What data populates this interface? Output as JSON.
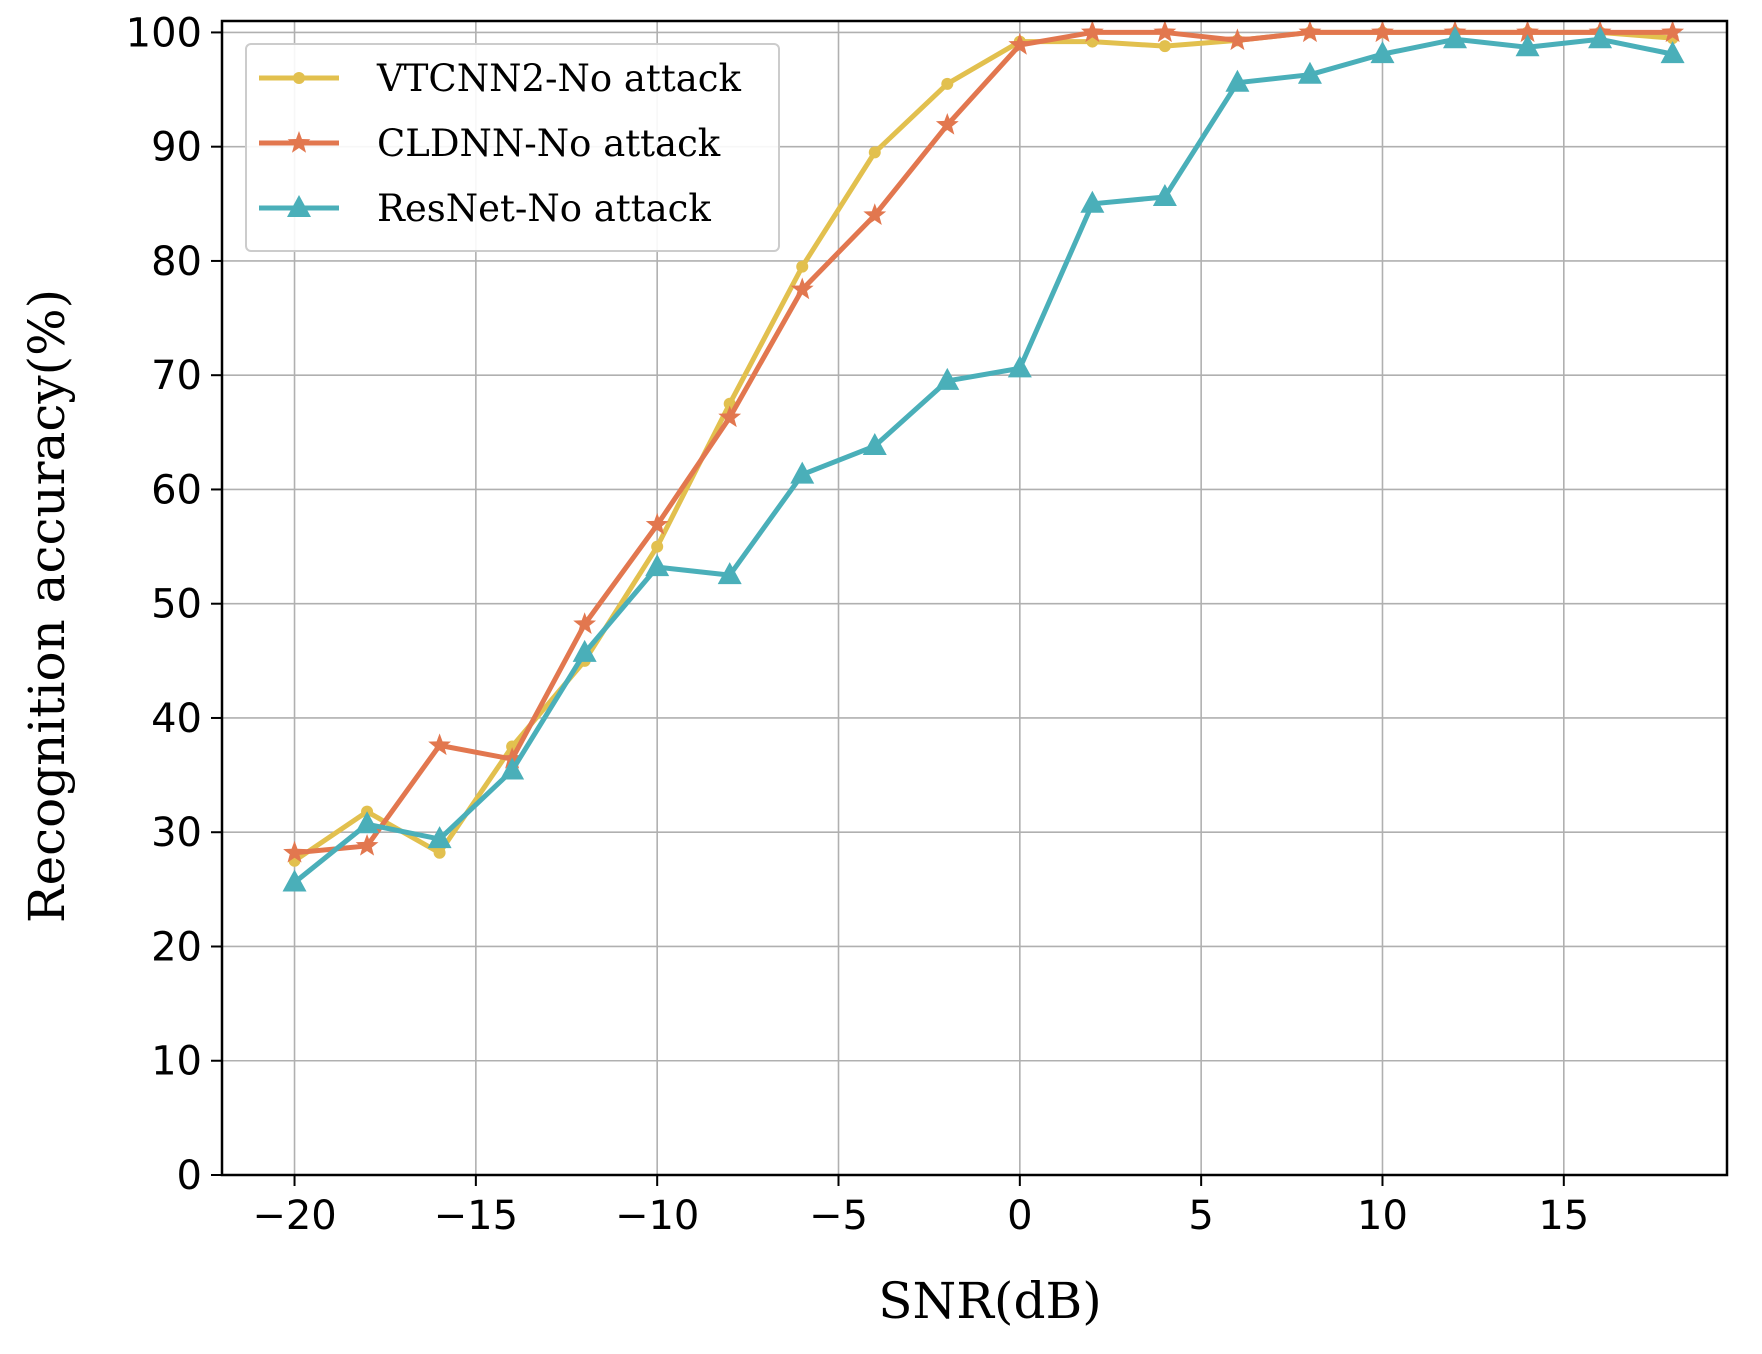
{
  "chart_data": {
    "type": "line",
    "title": "",
    "xlabel": "SNR(dB)",
    "ylabel": "Recognition accuracy(%)",
    "x": [
      -20,
      -18,
      -16,
      -14,
      -12,
      -10,
      -8,
      -6,
      -4,
      -2,
      0,
      2,
      4,
      6,
      8,
      10,
      12,
      14,
      16,
      18
    ],
    "xlim": [
      -22,
      19.5
    ],
    "ylim": [
      0,
      101
    ],
    "xticks": [
      -20,
      -15,
      -10,
      -5,
      0,
      5,
      10,
      15
    ],
    "xtick_labels": [
      "−20",
      "−15",
      "−10",
      "−5",
      "0",
      "5",
      "10",
      "15"
    ],
    "yticks": [
      0,
      10,
      20,
      30,
      40,
      50,
      60,
      70,
      80,
      90,
      100
    ],
    "ytick_labels": [
      "0",
      "10",
      "20",
      "30",
      "40",
      "50",
      "60",
      "70",
      "80",
      "90",
      "100"
    ],
    "grid": true,
    "legend_position": "top-left",
    "series": [
      {
        "name": "VTCNN2-No attack",
        "color": "#E2C04E",
        "marker": "circle",
        "values": [
          27.5,
          31.8,
          28.2,
          37.5,
          45.0,
          55.0,
          67.5,
          79.5,
          89.5,
          95.5,
          99.2,
          99.2,
          98.8,
          99.3,
          100.0,
          100.0,
          100.0,
          100.0,
          100.0,
          99.5
        ]
      },
      {
        "name": "CLDNN-No attack",
        "color": "#E2774F",
        "marker": "star",
        "values": [
          28.2,
          28.8,
          37.6,
          36.4,
          48.2,
          56.9,
          66.3,
          77.5,
          84.0,
          91.9,
          98.9,
          100.0,
          100.0,
          99.3,
          100.0,
          100.0,
          100.0,
          100.0,
          100.0,
          100.0
        ]
      },
      {
        "name": "ResNet-No attack",
        "color": "#4AAFB9",
        "marker": "triangle",
        "values": [
          25.6,
          30.7,
          29.4,
          35.4,
          45.7,
          53.2,
          52.5,
          61.3,
          63.8,
          69.5,
          70.6,
          85.0,
          85.6,
          95.6,
          96.3,
          98.1,
          99.4,
          98.7,
          99.4,
          98.1
        ]
      }
    ]
  }
}
